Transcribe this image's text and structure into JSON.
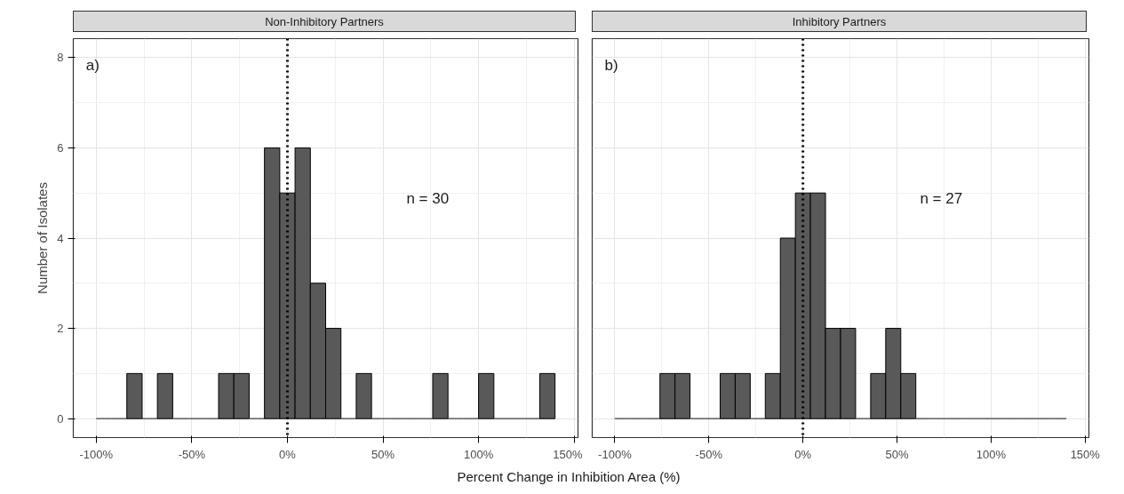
{
  "chart_data": [
    {
      "type": "histogram",
      "title": "Non-Inhibitory Partners",
      "xlabel": "Percent Change in Inhibition Area (%)",
      "ylabel": "Number of Isolates",
      "bins": [
        -100,
        -92,
        -84,
        -76,
        -68,
        -60,
        -52,
        -44,
        -36,
        -28,
        -20,
        -12,
        -4,
        4,
        12,
        20,
        28,
        36,
        44,
        52,
        60,
        68,
        76,
        84,
        92,
        100,
        108,
        116,
        124,
        132,
        140
      ],
      "values": [
        0,
        0,
        1,
        0,
        1,
        0,
        0,
        0,
        1,
        1,
        0,
        6,
        5,
        6,
        3,
        2,
        0,
        1,
        0,
        0,
        0,
        0,
        1,
        0,
        0,
        1,
        0,
        0,
        0,
        1
      ],
      "color": "#595959",
      "xlim": [
        -112,
        152
      ],
      "xticks": [
        {
          "value": -100,
          "label": "-100%"
        },
        {
          "value": -50,
          "label": "-50%"
        },
        {
          "value": 0,
          "label": "0%"
        },
        {
          "value": 50,
          "label": "50%"
        },
        {
          "value": 100,
          "label": "100%"
        },
        {
          "value": 150,
          "label": "150%"
        }
      ],
      "ylim": [
        -0.42,
        8.42
      ],
      "yticks": [
        0,
        2,
        4,
        6,
        8
      ],
      "grid": true,
      "ref_lines": [
        {
          "axis": "x",
          "value": 0,
          "line_style": "dotted",
          "color": "#000000"
        }
      ],
      "annotations": [
        "a)",
        "n = 30"
      ]
    },
    {
      "type": "histogram",
      "title": "Inhibitory Partners",
      "bins": [
        -100,
        -92,
        -84,
        -76,
        -68,
        -60,
        -52,
        -44,
        -36,
        -28,
        -20,
        -12,
        -4,
        4,
        12,
        20,
        28,
        36,
        44,
        52,
        60,
        68,
        76,
        84,
        92,
        100,
        108,
        116,
        124,
        132,
        140
      ],
      "values": [
        0,
        0,
        0,
        1,
        1,
        0,
        0,
        1,
        1,
        0,
        1,
        4,
        5,
        5,
        2,
        2,
        0,
        1,
        2,
        1,
        0,
        0,
        0,
        0,
        0,
        0,
        0,
        0,
        0,
        0
      ],
      "color": "#595959",
      "xlim": [
        -112,
        152
      ],
      "xticks": [
        {
          "value": -100,
          "label": "-100%"
        },
        {
          "value": -50,
          "label": "-50%"
        },
        {
          "value": 0,
          "label": "0%"
        },
        {
          "value": 50,
          "label": "50%"
        },
        {
          "value": 100,
          "label": "100%"
        },
        {
          "value": 150,
          "label": "150%"
        }
      ],
      "ylim": [
        -0.42,
        8.42
      ],
      "yticks": [
        0,
        2,
        4,
        6,
        8
      ],
      "grid": true,
      "tick_labels": "x",
      "ref_lines": [
        {
          "axis": "x",
          "value": 0,
          "line_style": "dotted",
          "color": "#000000"
        }
      ],
      "annotations": [
        "b)",
        "n = 27"
      ]
    }
  ]
}
